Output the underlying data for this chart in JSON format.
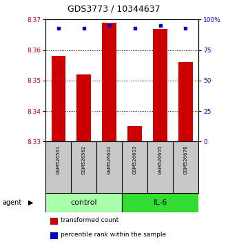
{
  "title": "GDS3773 / 10344637",
  "samples": [
    "GSM526561",
    "GSM526562",
    "GSM526602",
    "GSM526603",
    "GSM526605",
    "GSM526678"
  ],
  "transformed_counts": [
    8.358,
    8.352,
    8.369,
    8.335,
    8.367,
    8.356
  ],
  "percentile_ranks": [
    93,
    93,
    95,
    93,
    95,
    93
  ],
  "ylim_left": [
    8.33,
    8.37
  ],
  "ylim_right": [
    0,
    100
  ],
  "yticks_left": [
    8.33,
    8.34,
    8.35,
    8.36,
    8.37
  ],
  "yticks_right": [
    0,
    25,
    50,
    75,
    100
  ],
  "groups": [
    {
      "label": "control",
      "indices": [
        0,
        1,
        2
      ],
      "color": "#AAFFAA"
    },
    {
      "label": "IL-6",
      "indices": [
        3,
        4,
        5
      ],
      "color": "#33DD33"
    }
  ],
  "bar_color": "#CC0000",
  "blue_color": "#0000CC",
  "bar_bottom": 8.33,
  "bar_width": 0.55,
  "label_color_left": "#CC0000",
  "label_color_right": "#0000CC",
  "group_label_fontsize": 8,
  "tick_label_fontsize": 6.5,
  "title_fontsize": 9,
  "legend_fontsize": 6.5,
  "agent_label": "agent",
  "legend_items": [
    "transformed count",
    "percentile rank within the sample"
  ]
}
